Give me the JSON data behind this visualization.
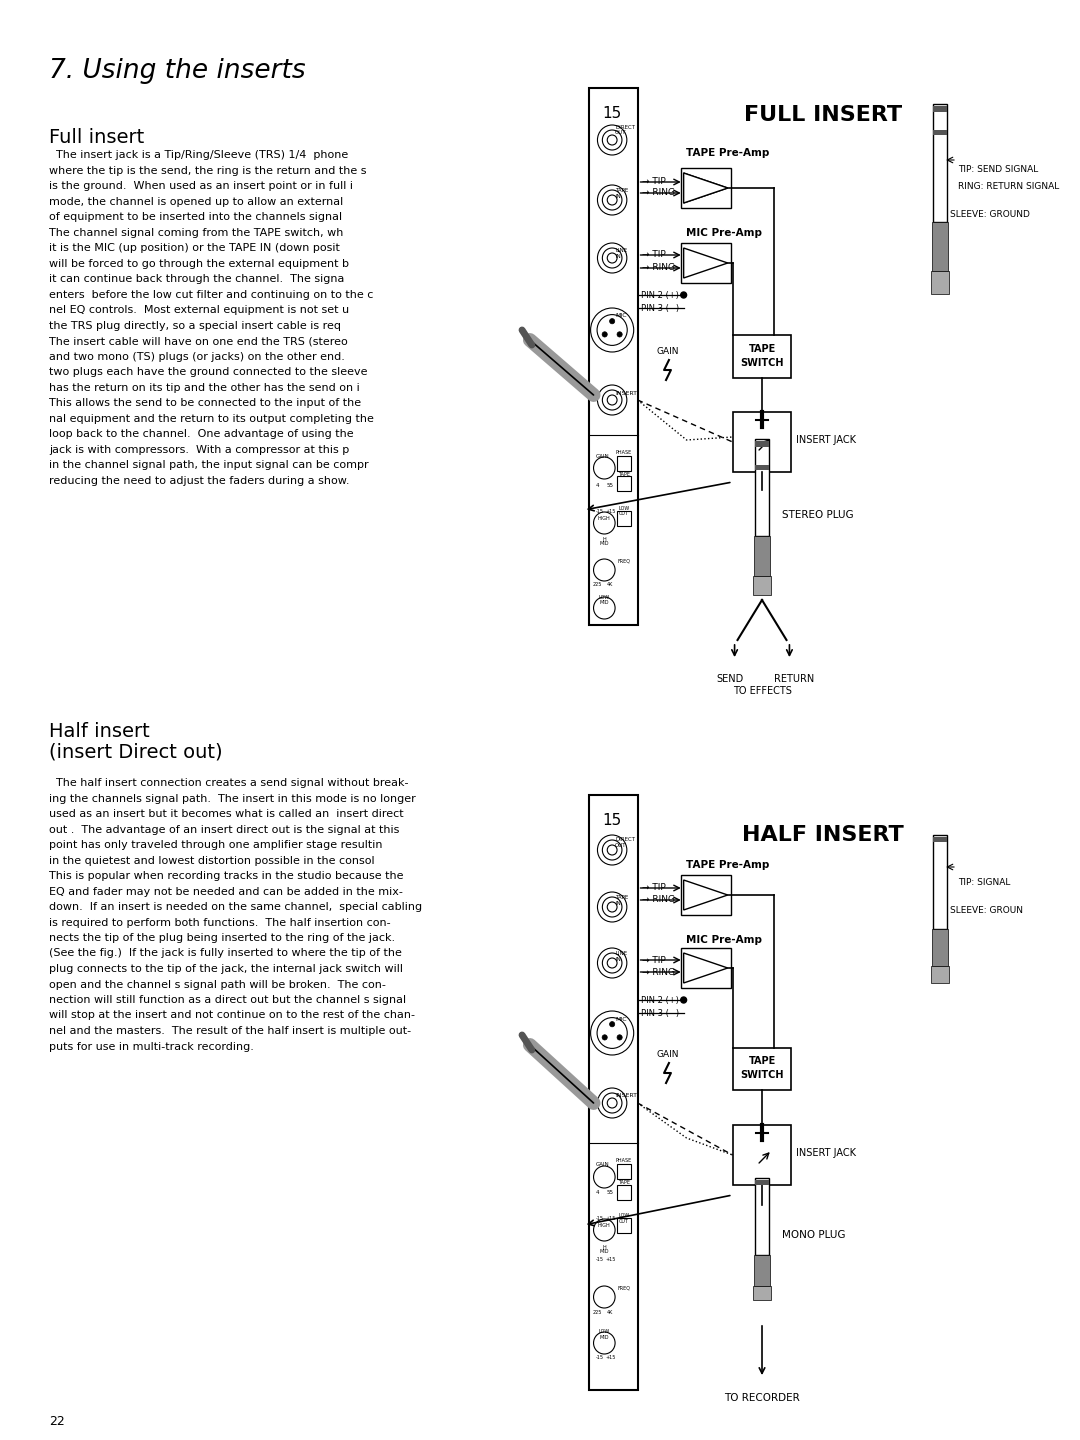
{
  "page_title": "7. Using the inserts",
  "full_insert_heading": "Full insert",
  "full_insert_body_lines": [
    "  The insert jack is a Tip/Ring/Sleeve (TRS) 1/4  phonе",
    "where the tip is the send, the ring is the return and the s",
    "is the ground.  When used as an insert point or in full i",
    "mode, the channel is opened up to allow an external",
    "of equipment to be inserted into the channels signal",
    "The channel signal coming from the TAPE switch, wh",
    "it is the MIC (up position) or the TAPE IN (down posit",
    "will be forced to go through the external equipment b",
    "it can continue back through the channel.  The signa",
    "enters  before the low cut filter and continuing on to the c",
    "nel EQ controls.  Most external equipment is not set u",
    "the TRS plug directly, so a special insert cable is req",
    "The insert cable will have on one end the TRS (stereo",
    "and two mono (TS) plugs (or jacks) on the other end.",
    "two plugs each have the ground connected to the sleeve",
    "has the return on its tip and the other has the send on i",
    "This allows the send to be connected to the input of the",
    "nal equipment and the return to its output completing the",
    "loop back to the channel.  One advantage of using the",
    "jack is with compressors.  With a compressor at this p",
    "in the channel signal path, the input signal can be compr",
    "reducing the need to adjust the faders during a show."
  ],
  "half_insert_heading": "Half insert",
  "half_insert_subheading": "(insert Direct out)",
  "half_insert_body_lines": [
    "  The half insert connection creates a send signal without break-",
    "ing the channels signal path.  The insert in this mode is no longer",
    "used as an insert but it becomes what is called an  insert direct",
    "out .  The advantage of an insert direct out is the signal at this",
    "point has only traveled through one amplifier stage resultin",
    "in the quietest and lowest distortion possible in the consol",
    "This is popular when recording tracks in the studio because the",
    "EQ and fader may not be needed and can be added in the mix-",
    "down.  If an insert is needed on the same channel,  special cabling",
    "is required to perform both functions.  The half insertion con-",
    "nects the tip of the plug being inserted to the ring of the jack.",
    "(See the fig.)  If the jack is fully inserted to where the tip of the",
    "plug connects to the tip of the jack, the internal jack switch will",
    "open and the channel s signal path will be broken.  The con-",
    "nection will still function as a direct out but the channel s signal",
    "will stop at the insert and not continue on to the rest of the chan-",
    "nel and the masters.  The result of the half insert is multiple out-",
    "puts for use in multi-track recording."
  ],
  "diagram1_title": "FULL INSERT",
  "diagram2_title": "HALF INSERT",
  "channel_num": "15",
  "page_num": "22",
  "bg_color": "#ffffff",
  "text_color": "#000000"
}
